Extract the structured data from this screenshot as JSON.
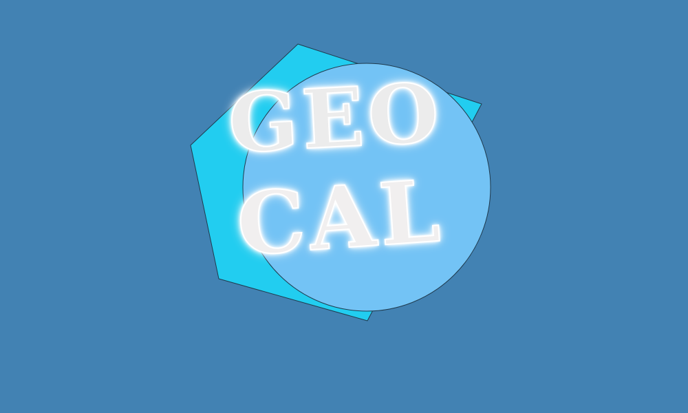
{
  "logo": {
    "line1": "GEO",
    "line2": "CAL",
    "icon": "geometric-logo-icon"
  },
  "colors": {
    "background": "#4282b3",
    "pentagon": "#22cdf0",
    "circle": "#73c3f5",
    "outline": "#1f3a4d",
    "text": "#ececec",
    "text_glow": "#ffffff"
  }
}
